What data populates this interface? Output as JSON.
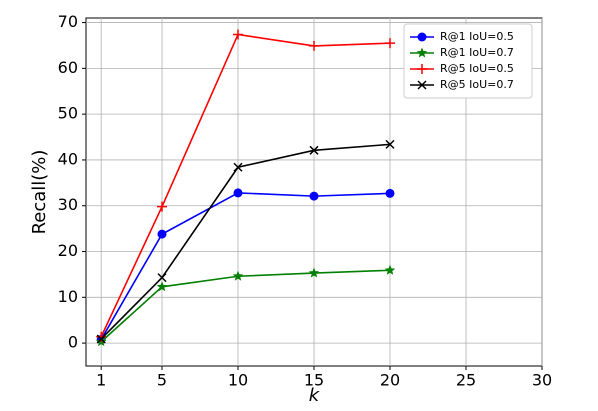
{
  "chart_data": {
    "type": "line",
    "x_label": "k",
    "y_label": "Recall(%)",
    "x": [
      1,
      5,
      10,
      15,
      20
    ],
    "series": [
      {
        "name": "R@1 IoU=0.5",
        "color": "#0000ff",
        "marker": "o",
        "values": [
          0.8,
          23.8,
          32.8,
          32.1,
          32.7
        ]
      },
      {
        "name": "R@1 IoU=0.7",
        "color": "#008000",
        "marker": "*",
        "values": [
          0.3,
          12.3,
          14.6,
          15.3,
          15.9
        ]
      },
      {
        "name": "R@5 IoU=0.5",
        "color": "#ff0000",
        "marker": "+",
        "values": [
          1.4,
          29.8,
          67.4,
          64.9,
          65.5
        ]
      },
      {
        "name": "R@5 IoU=0.7",
        "color": "#000000",
        "marker": "x",
        "values": [
          0.9,
          14.3,
          38.4,
          42.1,
          43.4
        ]
      }
    ],
    "xlim": [
      0,
      30
    ],
    "xticks": [
      1,
      5,
      10,
      15,
      20,
      25,
      30
    ],
    "ylim": [
      -5,
      71
    ],
    "yticks": [
      0,
      10,
      20,
      30,
      40,
      50,
      60,
      70
    ],
    "grid": true,
    "legend": "upper right"
  }
}
